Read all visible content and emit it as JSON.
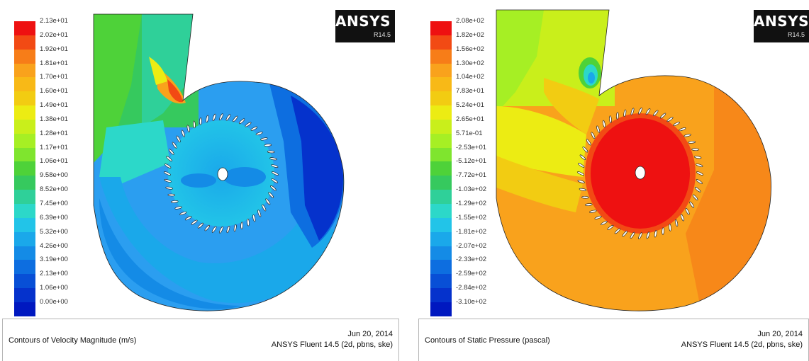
{
  "left_panel": {
    "legend": {
      "labels": [
        "2.13e+01",
        "2.02e+01",
        "1.92e+01",
        "1.81e+01",
        "1.70e+01",
        "1.60e+01",
        "1.49e+01",
        "1.38e+01",
        "1.28e+01",
        "1.17e+01",
        "1.06e+01",
        "9.58e+00",
        "8.52e+00",
        "7.45e+00",
        "6.39e+00",
        "5.32e+00",
        "4.26e+00",
        "3.19e+00",
        "2.13e+00",
        "1.06e+00",
        "0.00e+00"
      ],
      "colors": [
        "#ee1111",
        "#f24a14",
        "#f77d18",
        "#f9a21c",
        "#f8b917",
        "#f2cc12",
        "#ecec13",
        "#c9ef1b",
        "#a6ef24",
        "#7fe52e",
        "#4ed239",
        "#36c95e",
        "#2fd099",
        "#2cd8c9",
        "#22c4e8",
        "#1aa8ea",
        "#148be6",
        "#0d6ee0",
        "#084fd6",
        "#0532cc",
        "#0018c0"
      ]
    },
    "logo": {
      "brand": "ANSYS",
      "version": "R14.5"
    },
    "caption": {
      "title": "Contours of Velocity Magnitude (m/s)",
      "date": "Jun 20, 2014",
      "software": "ANSYS Fluent 14.5 (2d, pbns, ske)"
    }
  },
  "right_panel": {
    "legend": {
      "labels": [
        "2.08e+02",
        "1.82e+02",
        "1.56e+02",
        "1.30e+02",
        "1.04e+02",
        "7.83e+01",
        "5.24e+01",
        "2.65e+01",
        "5.71e-01",
        "-2.53e+01",
        "-5.12e+01",
        "-7.72e+01",
        "-1.03e+02",
        "-1.29e+02",
        "-1.55e+02",
        "-1.81e+02",
        "-2.07e+02",
        "-2.33e+02",
        "-2.59e+02",
        "-2.84e+02",
        "-3.10e+02"
      ],
      "colors": [
        "#ee1111",
        "#f24a14",
        "#f77d18",
        "#f9a21c",
        "#f8b917",
        "#f2cc12",
        "#ecec13",
        "#c9ef1b",
        "#a6ef24",
        "#7fe52e",
        "#4ed239",
        "#36c95e",
        "#2fd099",
        "#2cd8c9",
        "#22c4e8",
        "#1aa8ea",
        "#148be6",
        "#0d6ee0",
        "#084fd6",
        "#0532cc",
        "#0018c0"
      ]
    },
    "logo": {
      "brand": "ANSYS",
      "version": "R14.5"
    },
    "caption": {
      "title": "Contours of Static Pressure (pascal)",
      "date": "Jun 20, 2014",
      "software": "ANSYS Fluent 14.5 (2d, pbns, ske)"
    }
  },
  "impeller": {
    "blade_count": 48
  }
}
